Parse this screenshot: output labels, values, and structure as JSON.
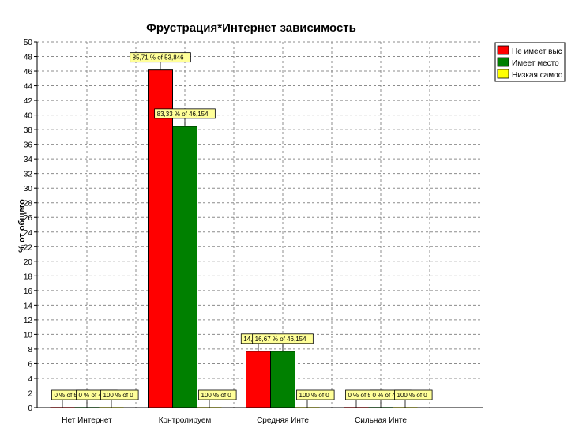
{
  "chart_data": {
    "type": "bar",
    "title": "Фрустрация*Интернет зависимость",
    "xlabel": "",
    "ylabel": "% от общего",
    "ylim": [
      0,
      50
    ],
    "ytick_step": 2,
    "grid": true,
    "legend_position": "top-right",
    "categories": [
      "Нет Интернет",
      "Контролируем",
      "Средняя Инте",
      "Сильная Инте"
    ],
    "series": [
      {
        "name": "Не имеет выс",
        "color": "#ff0000",
        "values": [
          0,
          46.15,
          7.69,
          0
        ],
        "labels": [
          "0 % of 53,",
          "85,71 % of 53,846",
          "14,29 % o",
          "0 % of 53,"
        ]
      },
      {
        "name": "Имеет место",
        "color": "#008000",
        "values": [
          0,
          38.46,
          7.69,
          0
        ],
        "labels": [
          "0 % of 46,1",
          "83,33 % of 46,154",
          "16,67 % of 46,154",
          "0 % of 46,1"
        ]
      },
      {
        "name": "Низкая самоо",
        "color": "#ffff00",
        "values": [
          0,
          0,
          0,
          0
        ],
        "labels": [
          "100 % of 0",
          "100 % of 0",
          "100 % of 0",
          "100 % of 0"
        ]
      }
    ]
  }
}
